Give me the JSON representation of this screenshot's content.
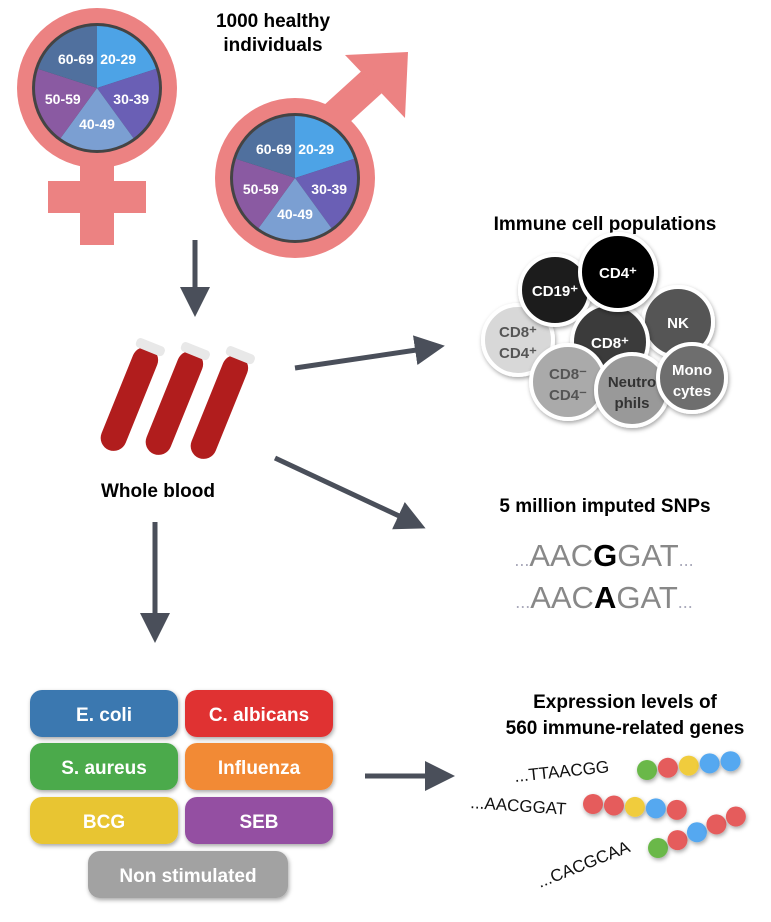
{
  "cohort": {
    "title_line1": "1000 healthy",
    "title_line2": "individuals",
    "age_groups": [
      "20-29",
      "30-39",
      "40-49",
      "50-59",
      "60-69"
    ],
    "age_colors": [
      "#4da3e6",
      "#6a5fb5",
      "#7b9fd2",
      "#8a5aa2",
      "#50709e"
    ],
    "symbol_color": "#ec8282"
  },
  "blood": {
    "label": "Whole blood"
  },
  "cells": {
    "title": "Immune cell populations",
    "items": [
      {
        "label": "CD8⁺",
        "label2": "CD4⁺",
        "fill": "#d8d8d8",
        "text": "#555"
      },
      {
        "label": "CD19⁺",
        "label2": "",
        "fill": "#1e1e1e",
        "text": "#fff"
      },
      {
        "label": "NK",
        "label2": "",
        "fill": "#555",
        "text": "#fff"
      },
      {
        "label": "CD8⁺",
        "label2": "",
        "fill": "#3a3a3a",
        "text": "#fff"
      },
      {
        "label": "CD4⁺",
        "label2": "",
        "fill": "#000",
        "text": "#fff"
      },
      {
        "label": "CD8⁻",
        "label2": "CD4⁻",
        "fill": "#aaa",
        "text": "#555"
      },
      {
        "label": "Neutro",
        "label2": "phils",
        "fill": "#999",
        "text": "#333"
      },
      {
        "label": "Mono",
        "label2": "cytes",
        "fill": "#6e6e6e",
        "text": "#fff"
      }
    ]
  },
  "snps": {
    "title": "5 million imputed SNPs",
    "seq1_pre": "AAC",
    "seq1_var": "G",
    "seq1_post": "GAT",
    "seq2_pre": "AAC",
    "seq2_var": "A",
    "seq2_post": "GAT",
    "dots": "..."
  },
  "stimuli": {
    "items": [
      {
        "label": "E. coli",
        "color": "#3b78b0"
      },
      {
        "label": "C. albicans",
        "color": "#e03232"
      },
      {
        "label": "S. aureus",
        "color": "#4caa4c"
      },
      {
        "label": "Influenza",
        "color": "#f28a35"
      },
      {
        "label": "BCG",
        "color": "#e8c530"
      },
      {
        "label": "SEB",
        "color": "#9450a2"
      },
      {
        "label": "Non stimulated",
        "color": "#a2a2a2"
      }
    ]
  },
  "expression": {
    "title_line1": "Expression levels of",
    "title_line2": "560 immune-related genes",
    "seqs": [
      "...TTAACGG",
      "...AACGGAT",
      "...CACGCAA"
    ],
    "bead_colors": {
      "green": "#6ab84a",
      "red": "#e55c5c",
      "yellow": "#f0cc3c",
      "blue": "#55a8f0"
    }
  }
}
